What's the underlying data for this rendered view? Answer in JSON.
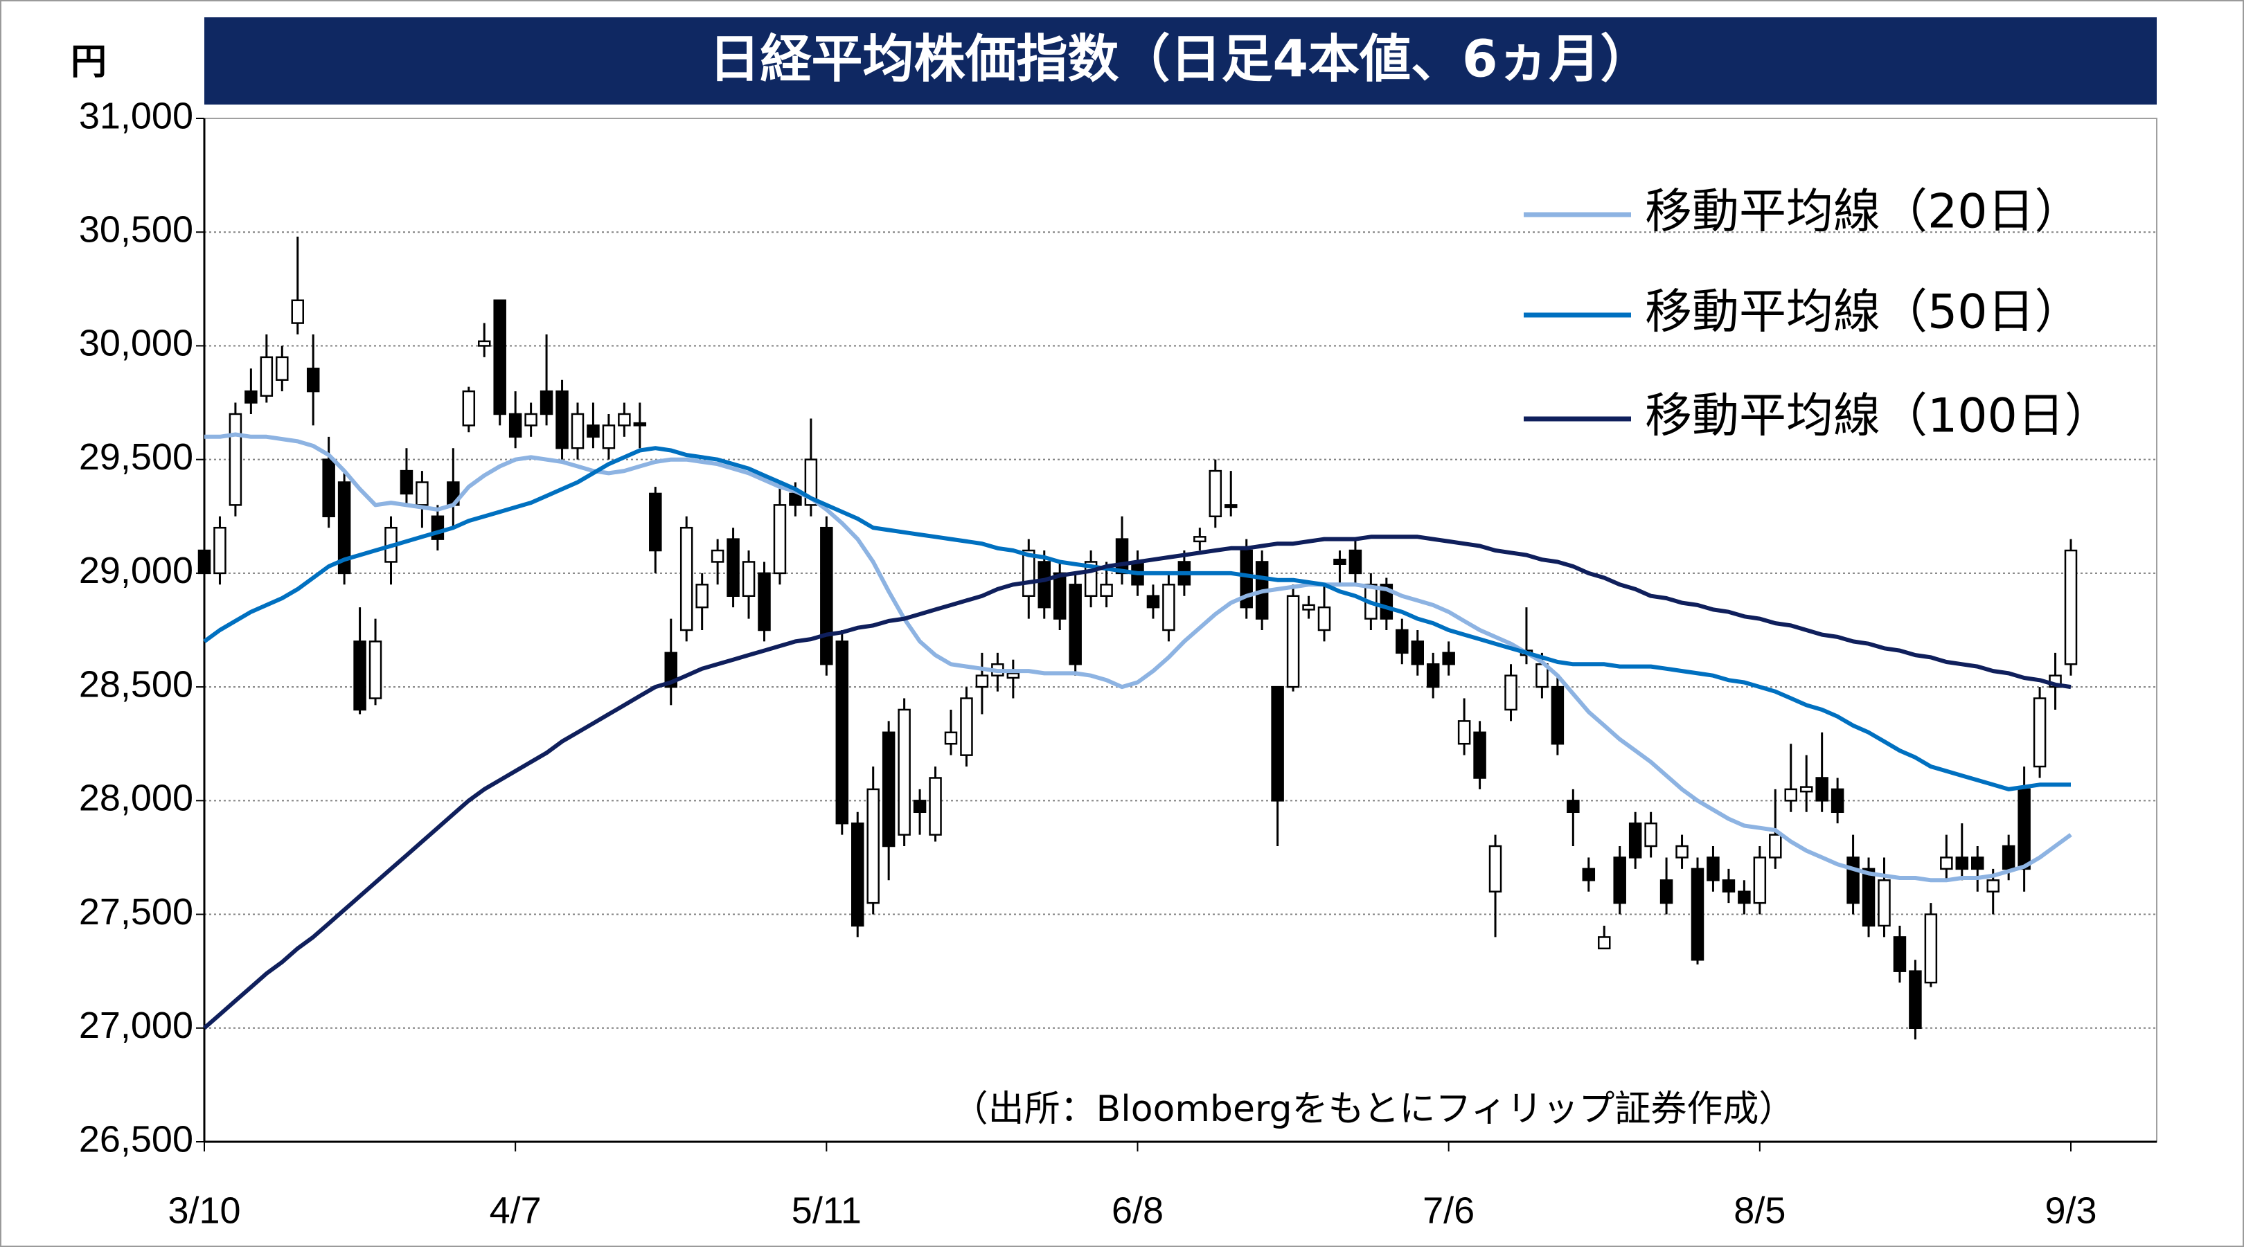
{
  "chart_data": {
    "type": "candlestick",
    "title": "日経平均株価指数（日足4本値、6ヵ月）",
    "y_label": "円",
    "source": "（出所：Bloombergをもとにフィリップ証券作成）",
    "categories": [
      "3/10",
      null,
      null,
      null,
      null,
      null,
      null,
      null,
      null,
      null,
      null,
      null,
      null,
      null,
      null,
      null,
      null,
      null,
      null,
      null,
      "4/7",
      null,
      null,
      null,
      null,
      null,
      null,
      null,
      null,
      null,
      null,
      null,
      null,
      null,
      null,
      null,
      null,
      null,
      null,
      null,
      "5/11",
      null,
      null,
      null,
      null,
      null,
      null,
      null,
      null,
      null,
      null,
      null,
      null,
      null,
      null,
      null,
      null,
      null,
      null,
      null,
      "6/8",
      null,
      null,
      null,
      null,
      null,
      null,
      null,
      null,
      null,
      null,
      null,
      null,
      null,
      null,
      null,
      null,
      null,
      null,
      null,
      "7/6",
      null,
      null,
      null,
      null,
      null,
      null,
      null,
      null,
      null,
      null,
      null,
      null,
      null,
      null,
      null,
      null,
      null,
      null,
      null,
      "8/5",
      null,
      null,
      null,
      null,
      null,
      null,
      null,
      null,
      null,
      null,
      null,
      null,
      null,
      null,
      null,
      null,
      null,
      null,
      null,
      "9/3"
    ],
    "open": [
      29100,
      29000,
      29300,
      29800,
      29780,
      29850,
      30100,
      29900,
      29500,
      29400,
      28700,
      28450,
      29050,
      29450,
      29300,
      29250,
      29400,
      29650,
      30000,
      30200,
      29700,
      29650,
      29800,
      29800,
      29550,
      29650,
      29550,
      29650,
      29660,
      29350,
      28650,
      28750,
      28850,
      29050,
      29150,
      28900,
      29000,
      29000,
      29350,
      29300,
      29200,
      28700,
      27900,
      27550,
      28300,
      27850,
      28000,
      27850,
      28250,
      28200,
      28500,
      28550,
      28540,
      28900,
      29050,
      29000,
      28950,
      28900,
      28900,
      29150,
      29050,
      28900,
      28750,
      29050,
      29140,
      29250,
      29300,
      29100,
      29050,
      28500,
      28500,
      28840,
      28750,
      29060,
      29100,
      28800,
      28950,
      28750,
      28700,
      28600,
      28650,
      28250,
      28300,
      27600,
      28400,
      28640,
      28500,
      28500,
      28000,
      27700,
      27350,
      27750,
      27900,
      27800,
      27650,
      27750,
      27700,
      27750,
      27650,
      27600,
      27550,
      27750,
      28000,
      28040,
      28100,
      28050,
      27750,
      27700,
      27450,
      27400,
      27250,
      27200,
      27700,
      27750,
      27750,
      27600,
      27800,
      28050,
      28150,
      28500,
      28600
    ],
    "high": [
      29200,
      29250,
      29750,
      29900,
      30050,
      30000,
      30480,
      30050,
      29600,
      29450,
      28850,
      28800,
      29250,
      29550,
      29450,
      29300,
      29550,
      29820,
      30100,
      30200,
      29800,
      29750,
      30050,
      29850,
      29750,
      29750,
      29700,
      29750,
      29750,
      29380,
      28800,
      29250,
      29000,
      29150,
      29200,
      29100,
      29050,
      29400,
      29400,
      29680,
      29250,
      28750,
      27950,
      28150,
      28350,
      28450,
      28050,
      28150,
      28400,
      28500,
      28650,
      28650,
      28620,
      29150,
      29100,
      29050,
      29000,
      29100,
      29050,
      29250,
      29100,
      28950,
      29000,
      29100,
      29200,
      29500,
      29450,
      29150,
      29100,
      28500,
      28950,
      28900,
      28950,
      29100,
      29150,
      29000,
      28980,
      28800,
      28750,
      28650,
      28700,
      28450,
      28350,
      27850,
      28600,
      28850,
      28650,
      28550,
      28050,
      27750,
      27450,
      27800,
      27950,
      27950,
      27750,
      27850,
      27750,
      27800,
      27700,
      27650,
      27800,
      28050,
      28250,
      28200,
      28300,
      28100,
      27850,
      27750,
      27750,
      27450,
      27300,
      27550,
      27850,
      27900,
      27800,
      27700,
      27850,
      28150,
      28500,
      28650,
      29150
    ],
    "low": [
      28950,
      28950,
      29250,
      29700,
      29750,
      29800,
      30050,
      29650,
      29200,
      28950,
      28380,
      28420,
      28950,
      29300,
      29200,
      29100,
      29200,
      29620,
      29950,
      29650,
      29550,
      29600,
      29650,
      29500,
      29500,
      29550,
      29500,
      29600,
      29550,
      29000,
      28420,
      28700,
      28750,
      28950,
      28850,
      28800,
      28700,
      28950,
      29250,
      29250,
      28550,
      27850,
      27400,
      27500,
      27650,
      27800,
      27850,
      27820,
      28200,
      28150,
      28380,
      28480,
      28450,
      28800,
      28800,
      28750,
      28550,
      28850,
      28850,
      28950,
      28900,
      28800,
      28700,
      28900,
      29100,
      29200,
      29250,
      28800,
      28750,
      27800,
      28480,
      28800,
      28700,
      28950,
      28950,
      28750,
      28750,
      28600,
      28550,
      28450,
      28550,
      28200,
      28050,
      27400,
      28350,
      28600,
      28450,
      28200,
      27800,
      27600,
      27350,
      27500,
      27700,
      27750,
      27500,
      27700,
      27280,
      27600,
      27550,
      27500,
      27500,
      27700,
      27950,
      27950,
      27950,
      27900,
      27500,
      27400,
      27400,
      27200,
      26950,
      27180,
      27650,
      27650,
      27600,
      27500,
      27650,
      27600,
      28100,
      28400,
      28550
    ],
    "close": [
      29000,
      29200,
      29700,
      29750,
      29950,
      29950,
      30200,
      29800,
      29250,
      29000,
      28400,
      28700,
      29200,
      29350,
      29400,
      29150,
      29300,
      29800,
      30020,
      29700,
      29600,
      29700,
      29700,
      29550,
      29700,
      29600,
      29650,
      29700,
      29650,
      29100,
      28500,
      29200,
      28950,
      29100,
      28900,
      29050,
      28750,
      29300,
      29300,
      29500,
      28600,
      27900,
      27450,
      28050,
      27800,
      28400,
      27950,
      28100,
      28300,
      28450,
      28550,
      28600,
      28560,
      29100,
      28850,
      28800,
      28600,
      29050,
      28950,
      29000,
      28950,
      28850,
      28950,
      28950,
      29160,
      29450,
      29290,
      28850,
      28800,
      28000,
      28900,
      28860,
      28850,
      29040,
      29000,
      28950,
      28800,
      28650,
      28600,
      28500,
      28600,
      28350,
      28100,
      27800,
      28550,
      28660,
      28600,
      28250,
      27950,
      27650,
      27400,
      27550,
      27750,
      27900,
      27550,
      27800,
      27300,
      27650,
      27600,
      27550,
      27750,
      27850,
      28050,
      28060,
      28000,
      27950,
      27550,
      27450,
      27650,
      27250,
      27000,
      27500,
      27750,
      27700,
      27700,
      27650,
      27700,
      27700,
      28450,
      28550,
      29100
    ],
    "up_color": "#ffffff",
    "down_color": "#000000",
    "series": [
      {
        "name": "移動平均線（20日）",
        "color": "#8db3e2",
        "values": [
          29600,
          29600,
          29610,
          29600,
          29600,
          29590,
          29580,
          29560,
          29520,
          29450,
          29370,
          29300,
          29310,
          29300,
          29290,
          29280,
          29300,
          29380,
          29430,
          29470,
          29500,
          29510,
          29500,
          29490,
          29470,
          29450,
          29440,
          29450,
          29470,
          29490,
          29500,
          29500,
          29490,
          29480,
          29460,
          29440,
          29410,
          29380,
          29360,
          29330,
          29280,
          29220,
          29150,
          29050,
          28920,
          28800,
          28700,
          28640,
          28600,
          28590,
          28580,
          28570,
          28570,
          28570,
          28560,
          28560,
          28560,
          28550,
          28530,
          28500,
          28520,
          28570,
          28630,
          28700,
          28760,
          28820,
          28870,
          28900,
          28920,
          28930,
          28940,
          28950,
          28950,
          28950,
          28950,
          28940,
          28930,
          28900,
          28880,
          28860,
          28830,
          28790,
          28750,
          28720,
          28690,
          28650,
          28610,
          28550,
          28470,
          28390,
          28330,
          28270,
          28220,
          28170,
          28110,
          28050,
          28000,
          27960,
          27920,
          27890,
          27880,
          27870,
          27820,
          27780,
          27750,
          27720,
          27700,
          27680,
          27670,
          27660,
          27660,
          27650,
          27650,
          27660,
          27660,
          27670,
          27690,
          27710,
          27750,
          27800,
          27850
        ]
      },
      {
        "name": "移動平均線（50日）",
        "color": "#0070c0",
        "values": [
          28700,
          28750,
          28790,
          28830,
          28860,
          28890,
          28930,
          28980,
          29030,
          29060,
          29080,
          29100,
          29120,
          29140,
          29160,
          29180,
          29200,
          29230,
          29250,
          29270,
          29290,
          29310,
          29340,
          29370,
          29400,
          29440,
          29480,
          29510,
          29540,
          29550,
          29540,
          29520,
          29510,
          29500,
          29480,
          29460,
          29430,
          29400,
          29370,
          29330,
          29300,
          29270,
          29240,
          29200,
          29190,
          29180,
          29170,
          29160,
          29150,
          29140,
          29130,
          29110,
          29100,
          29080,
          29070,
          29050,
          29040,
          29030,
          29020,
          29010,
          29000,
          29000,
          29000,
          29000,
          29000,
          29000,
          29000,
          28990,
          28980,
          28970,
          28970,
          28960,
          28950,
          28920,
          28900,
          28870,
          28850,
          28830,
          28800,
          28780,
          28750,
          28730,
          28710,
          28690,
          28670,
          28650,
          28630,
          28610,
          28600,
          28600,
          28600,
          28590,
          28590,
          28590,
          28580,
          28570,
          28560,
          28550,
          28530,
          28520,
          28500,
          28480,
          28450,
          28420,
          28400,
          28370,
          28330,
          28300,
          28260,
          28220,
          28190,
          28150,
          28130,
          28110,
          28090,
          28070,
          28050,
          28060,
          28070,
          28070,
          28070
        ]
      },
      {
        "name": "移動平均線（100日）",
        "color": "#0f1f5c",
        "values": [
          27000,
          27060,
          27120,
          27180,
          27240,
          27290,
          27350,
          27400,
          27460,
          27520,
          27580,
          27640,
          27700,
          27760,
          27820,
          27880,
          27940,
          28000,
          28050,
          28090,
          28130,
          28170,
          28210,
          28260,
          28300,
          28340,
          28380,
          28420,
          28460,
          28500,
          28520,
          28550,
          28580,
          28600,
          28620,
          28640,
          28660,
          28680,
          28700,
          28710,
          28730,
          28740,
          28760,
          28770,
          28790,
          28800,
          28820,
          28840,
          28860,
          28880,
          28900,
          28930,
          28950,
          28960,
          28970,
          28990,
          29000,
          29010,
          29030,
          29040,
          29050,
          29060,
          29070,
          29080,
          29090,
          29100,
          29110,
          29110,
          29120,
          29130,
          29130,
          29140,
          29150,
          29150,
          29150,
          29160,
          29160,
          29160,
          29160,
          29150,
          29140,
          29130,
          29120,
          29100,
          29090,
          29080,
          29060,
          29050,
          29030,
          29000,
          28980,
          28950,
          28930,
          28900,
          28890,
          28870,
          28860,
          28840,
          28830,
          28810,
          28800,
          28780,
          28770,
          28750,
          28730,
          28720,
          28700,
          28690,
          28670,
          28660,
          28640,
          28630,
          28610,
          28600,
          28590,
          28570,
          28560,
          28540,
          28530,
          28510,
          28500
        ]
      }
    ],
    "ylim": [
      26500,
      31000
    ],
    "yticks": [
      {
        "value": 26500,
        "label": "26,500"
      },
      {
        "value": 27000,
        "label": "27,000"
      },
      {
        "value": 27500,
        "label": "27,500"
      },
      {
        "value": 28000,
        "label": "28,000"
      },
      {
        "value": 28500,
        "label": "28,500"
      },
      {
        "value": 29000,
        "label": "29,000"
      },
      {
        "value": 29500,
        "label": "29,500"
      },
      {
        "value": 30000,
        "label": "30,000"
      },
      {
        "value": 30500,
        "label": "30,500"
      },
      {
        "value": 31000,
        "label": "31,000"
      }
    ],
    "grid": true,
    "legend": "upper right"
  }
}
